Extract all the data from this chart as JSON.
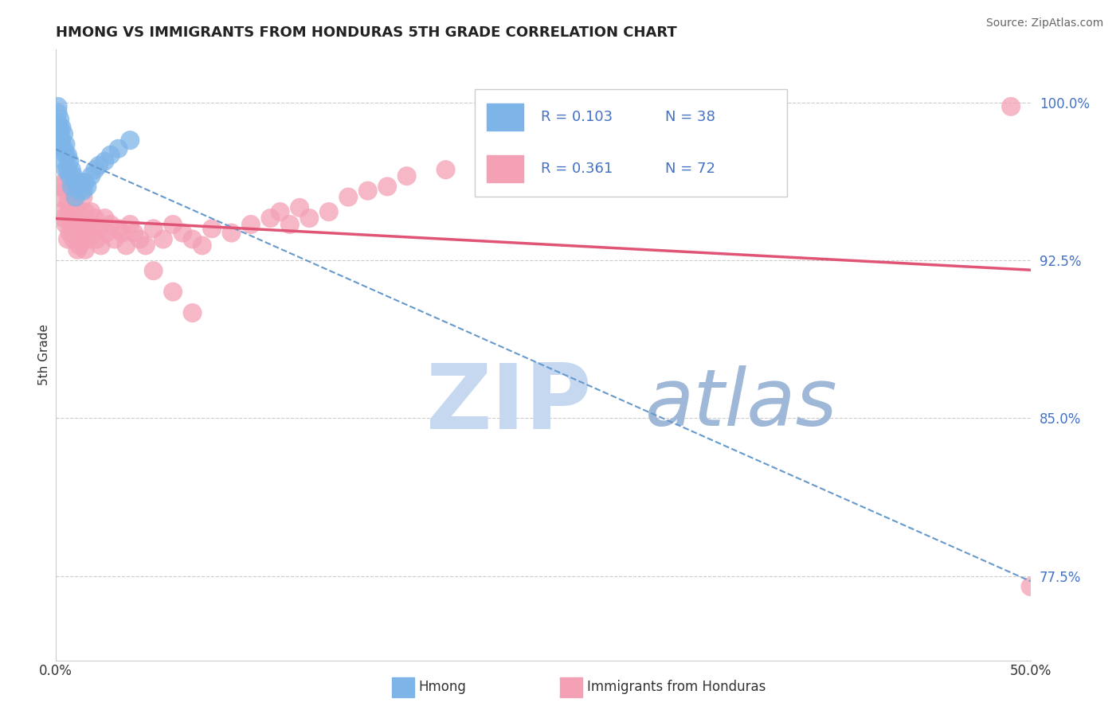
{
  "title": "HMONG VS IMMIGRANTS FROM HONDURAS 5TH GRADE CORRELATION CHART",
  "source": "Source: ZipAtlas.com",
  "ylabel": "5th Grade",
  "yticks": [
    77.5,
    85.0,
    92.5,
    100.0
  ],
  "xlim": [
    0.0,
    0.5
  ],
  "ylim": [
    0.735,
    1.025
  ],
  "hmong_R": 0.103,
  "hmong_N": 38,
  "honduras_R": 0.361,
  "honduras_N": 72,
  "hmong_color": "#7EB5E8",
  "honduras_color": "#F4A0B5",
  "hmong_line_color": "#6699CC",
  "honduras_line_color": "#E05575",
  "blue_text_color": "#4472C4",
  "watermark_zip_color": "#C5D8F0",
  "watermark_atlas_color": "#A0B8D8",
  "hmong_x": [
    0.001,
    0.001,
    0.001,
    0.002,
    0.002,
    0.002,
    0.002,
    0.003,
    0.003,
    0.003,
    0.004,
    0.004,
    0.004,
    0.005,
    0.005,
    0.005,
    0.006,
    0.006,
    0.007,
    0.007,
    0.008,
    0.008,
    0.009,
    0.01,
    0.01,
    0.011,
    0.012,
    0.013,
    0.014,
    0.015,
    0.016,
    0.018,
    0.02,
    0.022,
    0.025,
    0.028,
    0.032,
    0.038
  ],
  "hmong_y": [
    0.998,
    0.995,
    0.99,
    0.992,
    0.988,
    0.985,
    0.98,
    0.988,
    0.982,
    0.978,
    0.985,
    0.978,
    0.972,
    0.98,
    0.975,
    0.968,
    0.975,
    0.968,
    0.972,
    0.965,
    0.968,
    0.96,
    0.965,
    0.962,
    0.955,
    0.96,
    0.958,
    0.962,
    0.958,
    0.962,
    0.96,
    0.965,
    0.968,
    0.97,
    0.972,
    0.975,
    0.978,
    0.982
  ],
  "honduras_x": [
    0.001,
    0.002,
    0.003,
    0.004,
    0.004,
    0.005,
    0.005,
    0.006,
    0.006,
    0.007,
    0.007,
    0.008,
    0.008,
    0.009,
    0.009,
    0.01,
    0.01,
    0.011,
    0.011,
    0.012,
    0.012,
    0.013,
    0.014,
    0.014,
    0.015,
    0.015,
    0.016,
    0.017,
    0.018,
    0.019,
    0.02,
    0.021,
    0.022,
    0.023,
    0.025,
    0.026,
    0.028,
    0.03,
    0.032,
    0.034,
    0.036,
    0.038,
    0.04,
    0.043,
    0.046,
    0.05,
    0.055,
    0.06,
    0.065,
    0.07,
    0.075,
    0.08,
    0.09,
    0.1,
    0.11,
    0.115,
    0.12,
    0.125,
    0.13,
    0.14,
    0.05,
    0.06,
    0.07,
    0.15,
    0.16,
    0.17,
    0.18,
    0.2,
    0.22,
    0.26,
    0.49,
    0.5
  ],
  "honduras_y": [
    0.955,
    0.96,
    0.948,
    0.962,
    0.945,
    0.958,
    0.942,
    0.952,
    0.935,
    0.948,
    0.938,
    0.96,
    0.942,
    0.955,
    0.935,
    0.95,
    0.938,
    0.948,
    0.93,
    0.945,
    0.932,
    0.942,
    0.955,
    0.938,
    0.948,
    0.93,
    0.942,
    0.935,
    0.948,
    0.938,
    0.945,
    0.935,
    0.94,
    0.932,
    0.945,
    0.938,
    0.942,
    0.935,
    0.94,
    0.938,
    0.932,
    0.942,
    0.938,
    0.935,
    0.932,
    0.94,
    0.935,
    0.942,
    0.938,
    0.935,
    0.932,
    0.94,
    0.938,
    0.942,
    0.945,
    0.948,
    0.942,
    0.95,
    0.945,
    0.948,
    0.92,
    0.91,
    0.9,
    0.955,
    0.958,
    0.96,
    0.965,
    0.968,
    0.972,
    0.98,
    0.998,
    0.77
  ]
}
